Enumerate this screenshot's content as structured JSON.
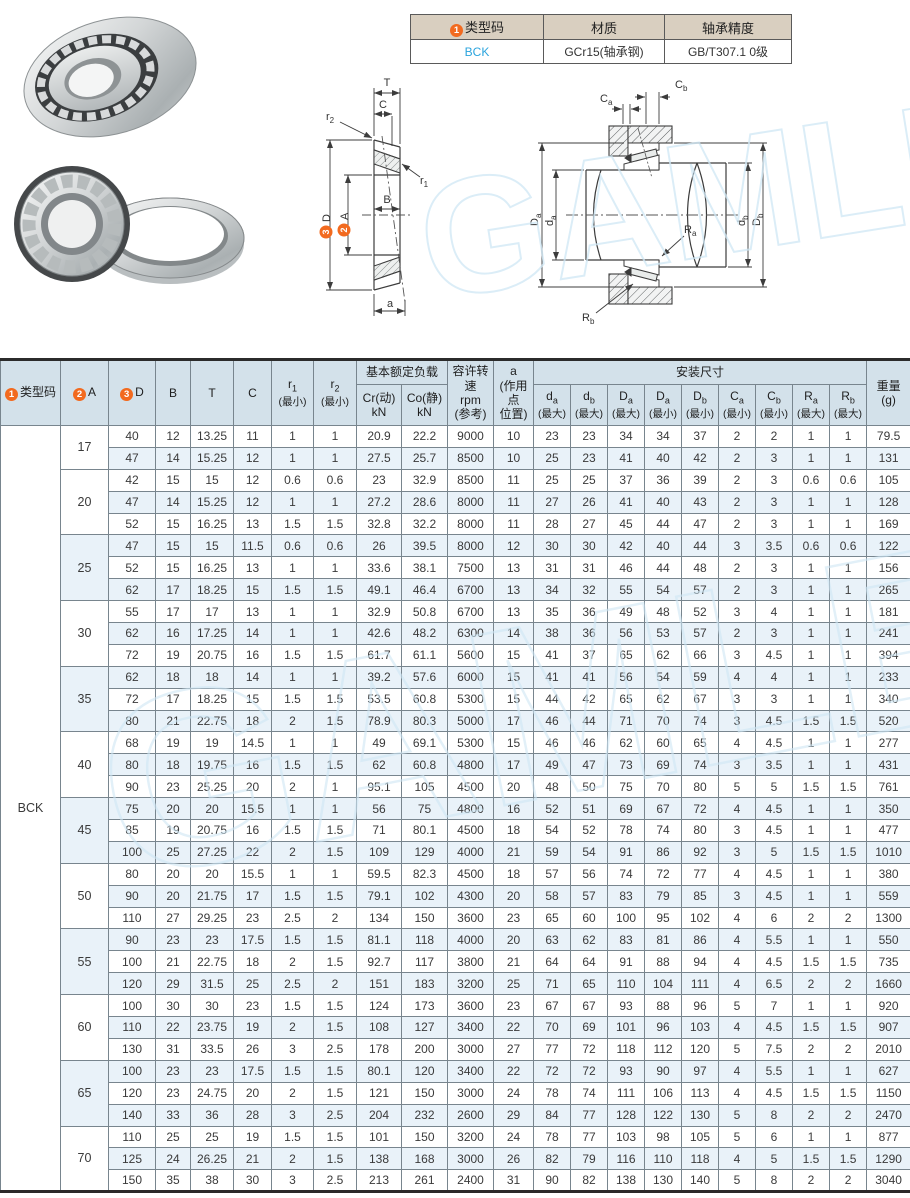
{
  "info_table": {
    "badge": "1",
    "headers": [
      "类型码",
      "材质",
      "轴承精度"
    ],
    "values": [
      "BCK",
      "GCr15(轴承钢)",
      "GB/T307.1 0级"
    ]
  },
  "watermark": "GAMLE",
  "diagrams": {
    "cross": {
      "t": "T",
      "c": "C",
      "r1_base": "r",
      "r1_sub": "1",
      "r2_base": "r",
      "r2_sub": "2",
      "b": "B",
      "a_dim": "a",
      "d_badge": "3",
      "d_label": "D",
      "a_badge": "2",
      "a_label": "A"
    },
    "mount": {
      "ca_base": "C",
      "ca_sub": "a",
      "cb_base": "C",
      "cb_sub": "b",
      "Da_base": "D",
      "Da_sub": "a",
      "da_base": "d",
      "da_sub": "a",
      "db_base": "d",
      "db_sub": "b",
      "Db_base": "D",
      "Db_sub": "b",
      "Ra_base": "R",
      "Ra_sub": "a",
      "Rb_base": "R",
      "Rb_sub": "b"
    }
  },
  "main_table": {
    "badges": {
      "type": "1",
      "a": "2",
      "d": "3"
    },
    "headers": {
      "type_code": "类型码",
      "a": "A",
      "d": "D",
      "b": "B",
      "t": "T",
      "c": "C",
      "r1": [
        "r",
        "1",
        "(最小)"
      ],
      "r2": [
        "r",
        "2",
        "(最小)"
      ],
      "load_group": "基本额定负载",
      "cr": [
        "Cr(动)",
        "kN"
      ],
      "co": [
        "Co(静)",
        "kN"
      ],
      "rpm": [
        "容许转速",
        "rpm",
        "(参考)"
      ],
      "action_point": [
        "a",
        "(作用点",
        "位置)"
      ],
      "mount_group": "安装尺寸",
      "mount_cols": [
        [
          "d",
          "a",
          "(最大)"
        ],
        [
          "d",
          "b",
          "(最大)"
        ],
        [
          "D",
          "a",
          "(最大)"
        ],
        [
          "D",
          "a",
          "(最小)"
        ],
        [
          "D",
          "b",
          "(最小)"
        ],
        [
          "C",
          "a",
          "(最小)"
        ],
        [
          "C",
          "b",
          "(最小)"
        ],
        [
          "R",
          "a",
          "(最大)"
        ],
        [
          "R",
          "b",
          "(最大)"
        ]
      ],
      "weight": [
        "重量",
        "(g)"
      ]
    },
    "type_code_value": "BCK",
    "groups": [
      {
        "a": "17",
        "rows": [
          [
            "40",
            "12",
            "13.25",
            "11",
            "1",
            "1",
            "20.9",
            "22.2",
            "9000",
            "10",
            "23",
            "23",
            "34",
            "34",
            "37",
            "2",
            "2",
            "1",
            "1",
            "79.5"
          ],
          [
            "47",
            "14",
            "15.25",
            "12",
            "1",
            "1",
            "27.5",
            "25.7",
            "8500",
            "10",
            "25",
            "23",
            "41",
            "40",
            "42",
            "2",
            "3",
            "1",
            "1",
            "131"
          ]
        ]
      },
      {
        "a": "20",
        "rows": [
          [
            "42",
            "15",
            "15",
            "12",
            "0.6",
            "0.6",
            "23",
            "32.9",
            "8500",
            "11",
            "25",
            "25",
            "37",
            "36",
            "39",
            "2",
            "3",
            "0.6",
            "0.6",
            "105"
          ],
          [
            "47",
            "14",
            "15.25",
            "12",
            "1",
            "1",
            "27.2",
            "28.6",
            "8000",
            "11",
            "27",
            "26",
            "41",
            "40",
            "43",
            "2",
            "3",
            "1",
            "1",
            "128"
          ],
          [
            "52",
            "15",
            "16.25",
            "13",
            "1.5",
            "1.5",
            "32.8",
            "32.2",
            "8000",
            "11",
            "28",
            "27",
            "45",
            "44",
            "47",
            "2",
            "3",
            "1",
            "1",
            "169"
          ]
        ]
      },
      {
        "a": "25",
        "rows": [
          [
            "47",
            "15",
            "15",
            "11.5",
            "0.6",
            "0.6",
            "26",
            "39.5",
            "8000",
            "12",
            "30",
            "30",
            "42",
            "40",
            "44",
            "3",
            "3.5",
            "0.6",
            "0.6",
            "122"
          ],
          [
            "52",
            "15",
            "16.25",
            "13",
            "1",
            "1",
            "33.6",
            "38.1",
            "7500",
            "13",
            "31",
            "31",
            "46",
            "44",
            "48",
            "2",
            "3",
            "1",
            "1",
            "156"
          ],
          [
            "62",
            "17",
            "18.25",
            "15",
            "1.5",
            "1.5",
            "49.1",
            "46.4",
            "6700",
            "13",
            "34",
            "32",
            "55",
            "54",
            "57",
            "2",
            "3",
            "1",
            "1",
            "265"
          ]
        ]
      },
      {
        "a": "30",
        "rows": [
          [
            "55",
            "17",
            "17",
            "13",
            "1",
            "1",
            "32.9",
            "50.8",
            "6700",
            "13",
            "35",
            "36",
            "49",
            "48",
            "52",
            "3",
            "4",
            "1",
            "1",
            "181"
          ],
          [
            "62",
            "16",
            "17.25",
            "14",
            "1",
            "1",
            "42.6",
            "48.2",
            "6300",
            "14",
            "38",
            "36",
            "56",
            "53",
            "57",
            "2",
            "3",
            "1",
            "1",
            "241"
          ],
          [
            "72",
            "19",
            "20.75",
            "16",
            "1.5",
            "1.5",
            "61.7",
            "61.1",
            "5600",
            "15",
            "41",
            "37",
            "65",
            "62",
            "66",
            "3",
            "4.5",
            "1",
            "1",
            "394"
          ]
        ]
      },
      {
        "a": "35",
        "rows": [
          [
            "62",
            "18",
            "18",
            "14",
            "1",
            "1",
            "39.2",
            "57.6",
            "6000",
            "15",
            "41",
            "41",
            "56",
            "54",
            "59",
            "4",
            "4",
            "1",
            "1",
            "233"
          ],
          [
            "72",
            "17",
            "18.25",
            "15",
            "1.5",
            "1.5",
            "53.5",
            "60.8",
            "5300",
            "15",
            "44",
            "42",
            "65",
            "62",
            "67",
            "3",
            "3",
            "1",
            "1",
            "340"
          ],
          [
            "80",
            "21",
            "22.75",
            "18",
            "2",
            "1.5",
            "78.9",
            "80.3",
            "5000",
            "17",
            "46",
            "44",
            "71",
            "70",
            "74",
            "3",
            "4.5",
            "1.5",
            "1.5",
            "520"
          ]
        ]
      },
      {
        "a": "40",
        "rows": [
          [
            "68",
            "19",
            "19",
            "14.5",
            "1",
            "1",
            "49",
            "69.1",
            "5300",
            "15",
            "46",
            "46",
            "62",
            "60",
            "65",
            "4",
            "4.5",
            "1",
            "1",
            "277"
          ],
          [
            "80",
            "18",
            "19.75",
            "16",
            "1.5",
            "1.5",
            "62",
            "60.8",
            "4800",
            "17",
            "49",
            "47",
            "73",
            "69",
            "74",
            "3",
            "3.5",
            "1",
            "1",
            "431"
          ],
          [
            "90",
            "23",
            "25.25",
            "20",
            "2",
            "1",
            "95.1",
            "105",
            "4500",
            "20",
            "48",
            "50",
            "75",
            "70",
            "80",
            "5",
            "5",
            "1.5",
            "1.5",
            "761"
          ]
        ]
      },
      {
        "a": "45",
        "rows": [
          [
            "75",
            "20",
            "20",
            "15.5",
            "1",
            "1",
            "56",
            "75",
            "4800",
            "16",
            "52",
            "51",
            "69",
            "67",
            "72",
            "4",
            "4.5",
            "1",
            "1",
            "350"
          ],
          [
            "85",
            "19",
            "20.75",
            "16",
            "1.5",
            "1.5",
            "71",
            "80.1",
            "4500",
            "18",
            "54",
            "52",
            "78",
            "74",
            "80",
            "3",
            "4.5",
            "1",
            "1",
            "477"
          ],
          [
            "100",
            "25",
            "27.25",
            "22",
            "2",
            "1.5",
            "109",
            "129",
            "4000",
            "21",
            "59",
            "54",
            "91",
            "86",
            "92",
            "3",
            "5",
            "1.5",
            "1.5",
            "1010"
          ]
        ]
      },
      {
        "a": "50",
        "rows": [
          [
            "80",
            "20",
            "20",
            "15.5",
            "1",
            "1",
            "59.5",
            "82.3",
            "4500",
            "18",
            "57",
            "56",
            "74",
            "72",
            "77",
            "4",
            "4.5",
            "1",
            "1",
            "380"
          ],
          [
            "90",
            "20",
            "21.75",
            "17",
            "1.5",
            "1.5",
            "79.1",
            "102",
            "4300",
            "20",
            "58",
            "57",
            "83",
            "79",
            "85",
            "3",
            "4.5",
            "1",
            "1",
            "559"
          ],
          [
            "110",
            "27",
            "29.25",
            "23",
            "2.5",
            "2",
            "134",
            "150",
            "3600",
            "23",
            "65",
            "60",
            "100",
            "95",
            "102",
            "4",
            "6",
            "2",
            "2",
            "1300"
          ]
        ]
      },
      {
        "a": "55",
        "rows": [
          [
            "90",
            "23",
            "23",
            "17.5",
            "1.5",
            "1.5",
            "81.1",
            "118",
            "4000",
            "20",
            "63",
            "62",
            "83",
            "81",
            "86",
            "4",
            "5.5",
            "1",
            "1",
            "550"
          ],
          [
            "100",
            "21",
            "22.75",
            "18",
            "2",
            "1.5",
            "92.7",
            "117",
            "3800",
            "21",
            "64",
            "64",
            "91",
            "88",
            "94",
            "4",
            "4.5",
            "1.5",
            "1.5",
            "735"
          ],
          [
            "120",
            "29",
            "31.5",
            "25",
            "2.5",
            "2",
            "151",
            "183",
            "3200",
            "25",
            "71",
            "65",
            "110",
            "104",
            "111",
            "4",
            "6.5",
            "2",
            "2",
            "1660"
          ]
        ]
      },
      {
        "a": "60",
        "rows": [
          [
            "100",
            "30",
            "30",
            "23",
            "1.5",
            "1.5",
            "124",
            "173",
            "3600",
            "23",
            "67",
            "67",
            "93",
            "88",
            "96",
            "5",
            "7",
            "1",
            "1",
            "920"
          ],
          [
            "110",
            "22",
            "23.75",
            "19",
            "2",
            "1.5",
            "108",
            "127",
            "3400",
            "22",
            "70",
            "69",
            "101",
            "96",
            "103",
            "4",
            "4.5",
            "1.5",
            "1.5",
            "907"
          ],
          [
            "130",
            "31",
            "33.5",
            "26",
            "3",
            "2.5",
            "178",
            "200",
            "3000",
            "27",
            "77",
            "72",
            "118",
            "112",
            "120",
            "5",
            "7.5",
            "2",
            "2",
            "2010"
          ]
        ]
      },
      {
        "a": "65",
        "rows": [
          [
            "100",
            "23",
            "23",
            "17.5",
            "1.5",
            "1.5",
            "80.1",
            "120",
            "3400",
            "22",
            "72",
            "72",
            "93",
            "90",
            "97",
            "4",
            "5.5",
            "1",
            "1",
            "627"
          ],
          [
            "120",
            "23",
            "24.75",
            "20",
            "2",
            "1.5",
            "121",
            "150",
            "3000",
            "24",
            "78",
            "74",
            "111",
            "106",
            "113",
            "4",
            "4.5",
            "1.5",
            "1.5",
            "1150"
          ],
          [
            "140",
            "33",
            "36",
            "28",
            "3",
            "2.5",
            "204",
            "232",
            "2600",
            "29",
            "84",
            "77",
            "128",
            "122",
            "130",
            "5",
            "8",
            "2",
            "2",
            "2470"
          ]
        ]
      },
      {
        "a": "70",
        "rows": [
          [
            "110",
            "25",
            "25",
            "19",
            "1.5",
            "1.5",
            "101",
            "150",
            "3200",
            "24",
            "78",
            "77",
            "103",
            "98",
            "105",
            "5",
            "6",
            "1",
            "1",
            "877"
          ],
          [
            "125",
            "24",
            "26.25",
            "21",
            "2",
            "1.5",
            "138",
            "168",
            "3000",
            "26",
            "82",
            "79",
            "116",
            "110",
            "118",
            "4",
            "5",
            "1.5",
            "1.5",
            "1290"
          ],
          [
            "150",
            "35",
            "38",
            "30",
            "3",
            "2.5",
            "213",
            "261",
            "2400",
            "31",
            "90",
            "82",
            "138",
            "130",
            "140",
            "5",
            "8",
            "2",
            "2",
            "3040"
          ]
        ]
      }
    ]
  }
}
